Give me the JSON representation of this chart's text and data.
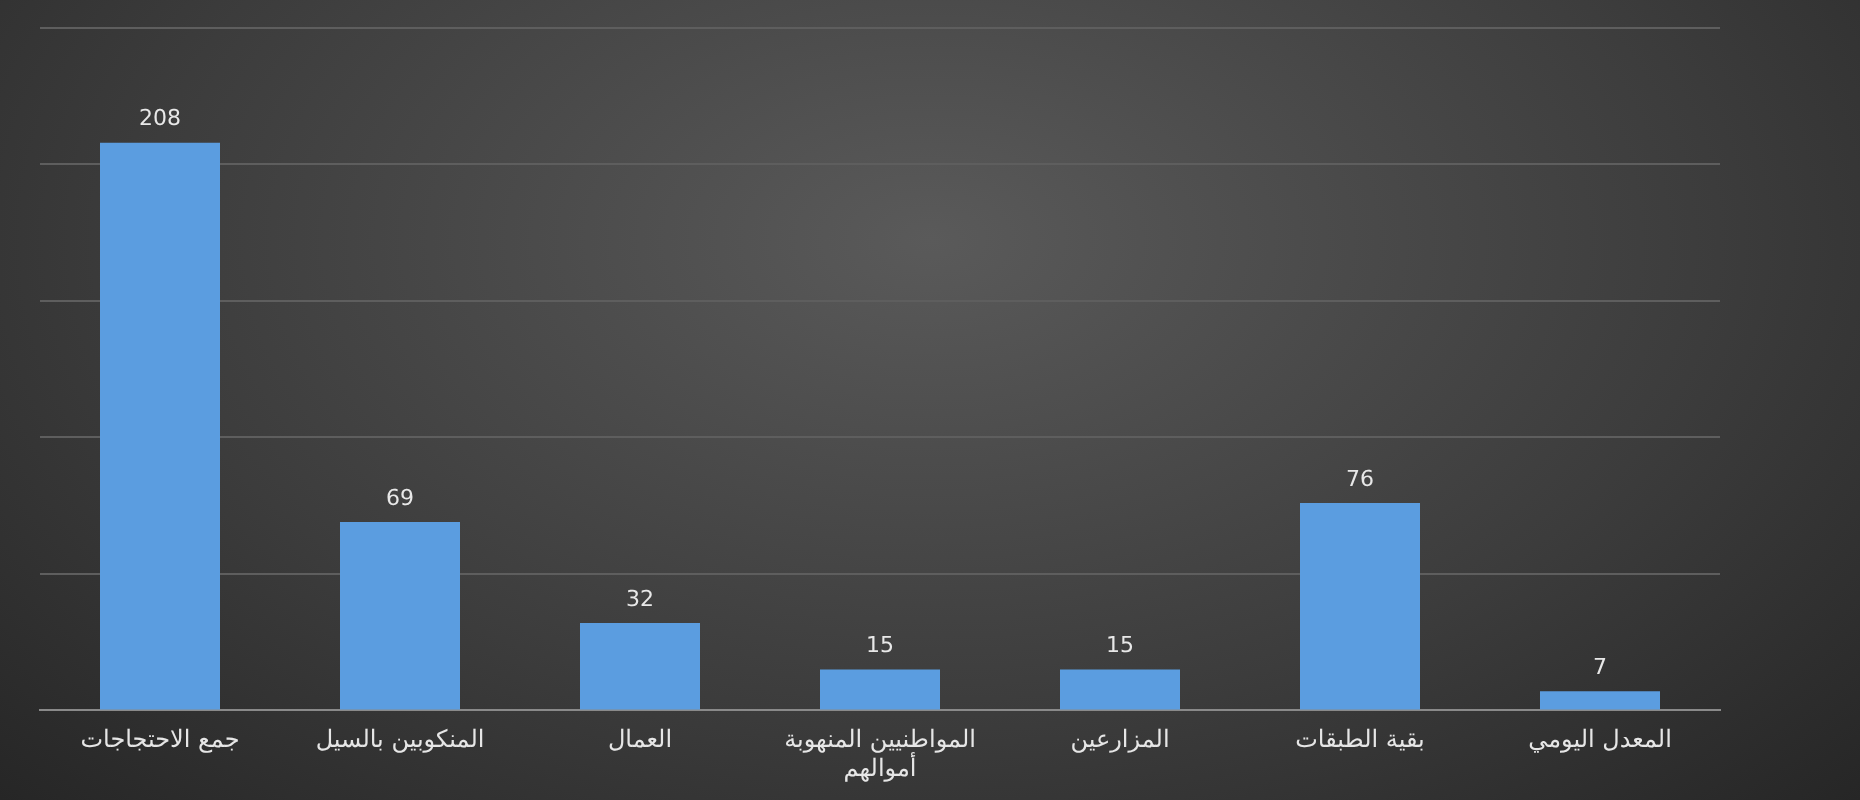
{
  "chart_data": {
    "type": "bar",
    "categories": [
      "جمع الاحتجاجات",
      "المنكوبين بالسيل",
      "العمال",
      "المواطنيين المنهوبة أموالهم",
      "المزارعين",
      "بقية الطبقات",
      "المعدل اليومي"
    ],
    "values": [
      208,
      69,
      32,
      15,
      15,
      76,
      7
    ],
    "color": "#5b9de0",
    "ylim": [
      0,
      250
    ],
    "yticks": [
      0,
      50,
      100,
      150,
      200,
      250
    ],
    "grid": "y",
    "tick_labels": "x",
    "data_labels": true
  }
}
